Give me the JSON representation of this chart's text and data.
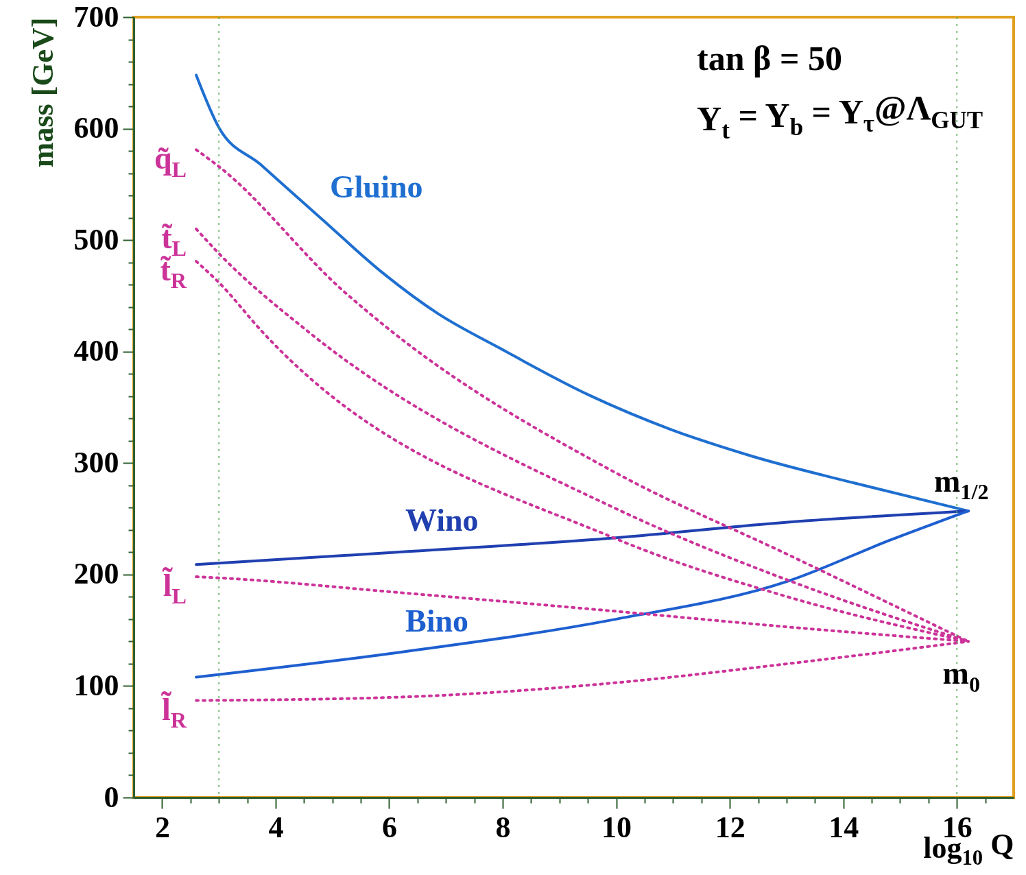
{
  "chart_data": {
    "type": "line",
    "xlabel": "log$_{10}$ Q",
    "ylabel": "mass [GeV]",
    "xlim": [
      1.5,
      17
    ],
    "ylim": [
      0,
      700
    ],
    "xticks": [
      2,
      {
        "value": 2.5,
        "label": null
      },
      {
        "value": 3,
        "label": null
      },
      {
        "value": 3.5,
        "label": null
      },
      4,
      {
        "value": 4.5,
        "label": null
      },
      {
        "value": 5,
        "label": null
      },
      {
        "value": 5.5,
        "label": null
      },
      6,
      {
        "value": 6.5,
        "label": null
      },
      {
        "value": 7,
        "label": null
      },
      {
        "value": 7.5,
        "label": null
      },
      8,
      {
        "value": 8.5,
        "label": null
      },
      {
        "value": 9,
        "label": null
      },
      {
        "value": 9.5,
        "label": null
      },
      10,
      {
        "value": 10.5,
        "label": null
      },
      {
        "value": 11,
        "label": null
      },
      {
        "value": 11.5,
        "label": null
      },
      12,
      {
        "value": 12.5,
        "label": null
      },
      {
        "value": 13,
        "label": null
      },
      {
        "value": 13.5,
        "label": null
      },
      14,
      {
        "value": 14.5,
        "label": null
      },
      {
        "value": 15,
        "label": null
      },
      {
        "value": 15.5,
        "label": null
      },
      16,
      {
        "value": 16.5,
        "label": null
      }
    ],
    "yticks": [
      0,
      {
        "value": 20,
        "label": null
      },
      {
        "value": 40,
        "label": null
      },
      {
        "value": 60,
        "label": null
      },
      {
        "value": 80,
        "label": null
      },
      100,
      {
        "value": 120,
        "label": null
      },
      {
        "value": 140,
        "label": null
      },
      {
        "value": 160,
        "label": null
      },
      {
        "value": 180,
        "label": null
      },
      200,
      {
        "value": 220,
        "label": null
      },
      {
        "value": 240,
        "label": null
      },
      {
        "value": 260,
        "label": null
      },
      {
        "value": 280,
        "label": null
      },
      300,
      {
        "value": 320,
        "label": null
      },
      {
        "value": 340,
        "label": null
      },
      {
        "value": 360,
        "label": null
      },
      {
        "value": 380,
        "label": null
      },
      400,
      {
        "value": 420,
        "label": null
      },
      {
        "value": 440,
        "label": null
      },
      {
        "value": 460,
        "label": null
      },
      {
        "value": 480,
        "label": null
      },
      500,
      {
        "value": 520,
        "label": null
      },
      {
        "value": 540,
        "label": null
      },
      {
        "value": 560,
        "label": null
      },
      {
        "value": 580,
        "label": null
      },
      600,
      {
        "value": 620,
        "label": null
      },
      {
        "value": 640,
        "label": null
      },
      {
        "value": 660,
        "label": null
      },
      {
        "value": 680,
        "label": null
      },
      700
    ],
    "grid": false,
    "legend": false,
    "marker": "none",
    "annotations": [
      "tan β = 50",
      "Y$_{t}$ = Y$_{b}$ = Y$_{τ}$@Λ$_{GUT}$",
      {
        "text": "m$_{1/2}$",
        "x": 16.2,
        "y": 257
      },
      {
        "text": "m$_{0}$",
        "x": 16.2,
        "y": 140
      }
    ],
    "ref_lines": [
      {
        "axis": "x",
        "value": 3,
        "color": "#55aa55",
        "line_style": "dotted"
      },
      {
        "axis": "x",
        "value": 16,
        "color": "#55aa55",
        "line_style": "dotted"
      }
    ],
    "series": [
      {
        "name": "Gluino",
        "color": "#1e6fd0",
        "line_style": "solid",
        "x": [
          2.6,
          3.0,
          3.73,
          4.81,
          5.9,
          6.86,
          7.95,
          9.52,
          10.97,
          12.4,
          14.2,
          16.2
        ],
        "values": [
          648,
          601,
          568,
          519,
          470,
          434,
          403,
          361,
          330,
          306,
          282,
          257
        ]
      },
      {
        "name": "Wino",
        "color": "#2040b0",
        "line_style": "solid",
        "x": [
          2.6,
          6.14,
          10.0,
          13.02,
          16.2
        ],
        "values": [
          209,
          220,
          233,
          247,
          257
        ]
      },
      {
        "name": "Bino",
        "color": "#1e5fd0",
        "line_style": "solid",
        "x": [
          2.6,
          6.14,
          10.0,
          13.02,
          14.83,
          16.2
        ],
        "values": [
          108,
          130,
          160,
          194,
          231,
          257
        ]
      },
      {
        "name": "q̃$_{L}$",
        "color": "#cc3399",
        "line_style": "dotted",
        "x": [
          2.6,
          3.0,
          5.2,
          5.9,
          10.0,
          13.02,
          16.2
        ],
        "values": [
          581,
          566,
          454,
          424,
          291,
          218,
          140
        ]
      },
      {
        "name": "t̃$_{L}$",
        "color": "#cc3399",
        "line_style": "dotted",
        "x": [
          2.6,
          3.0,
          4.57,
          10.0,
          13.02,
          16.2
        ],
        "values": [
          510,
          488,
          418,
          259,
          195,
          140
        ]
      },
      {
        "name": "t̃$_{R}$",
        "color": "#cc3399",
        "line_style": "dotted",
        "x": [
          2.6,
          3.0,
          3.76,
          10.0,
          13.02,
          16.2
        ],
        "values": [
          481,
          462,
          418,
          232,
          180,
          140
        ]
      },
      {
        "name": "l̃$_{L}$",
        "color": "#cc3399",
        "line_style": "dotted",
        "x": [
          2.6,
          3.0,
          6.14,
          10.0,
          13.02,
          16.2
        ],
        "values": [
          198,
          197,
          184,
          167,
          153,
          140
        ]
      },
      {
        "name": "l̃$_{R}$",
        "color": "#cc3399",
        "line_style": "dotted",
        "x": [
          2.6,
          6.14,
          10.0,
          13.02,
          16.2
        ],
        "values": [
          87,
          90,
          103,
          120,
          140
        ]
      }
    ]
  }
}
